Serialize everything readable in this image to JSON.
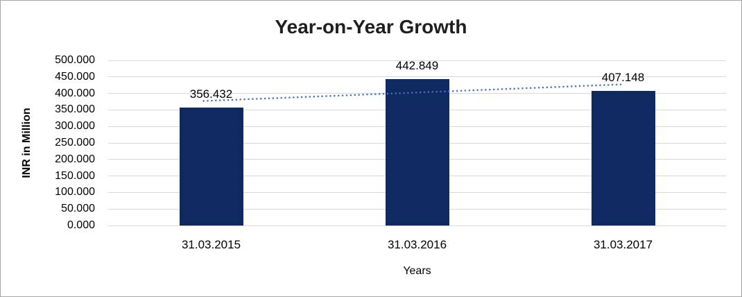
{
  "chart_data": {
    "type": "bar",
    "title": "Year-on-Year Growth",
    "xlabel": "Years",
    "ylabel": "INR in Million",
    "categories": [
      "31.03.2015",
      "31.03.2016",
      "31.03.2017"
    ],
    "values": [
      356.432,
      442.849,
      407.148
    ],
    "data_labels": [
      "356.432",
      "442.849",
      "407.148"
    ],
    "y_axis": {
      "min": 0,
      "max": 500,
      "step": 50,
      "tick_labels": [
        "0.000",
        "50.000",
        "100.000",
        "150.000",
        "200.000",
        "250.000",
        "300.000",
        "350.000",
        "400.000",
        "450.000",
        "500.000"
      ]
    },
    "grid": true,
    "legend": "none",
    "trendline": {
      "type": "linear",
      "style": "dotted",
      "start_value": 377,
      "end_value": 427.5
    },
    "colors": {
      "bar": "#0E2A60",
      "trendline": "#4472C4",
      "gridline": "#D9D9D9",
      "text": "#000000",
      "title": "#1F1F1F",
      "border": "#A6A6A6",
      "background": "#FFFFFF"
    }
  }
}
